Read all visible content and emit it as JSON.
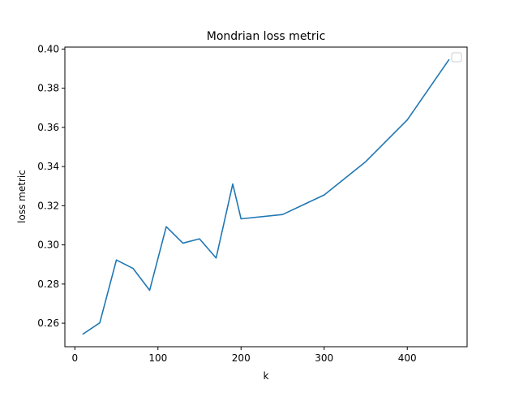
{
  "chart_data": {
    "type": "line",
    "title": "Mondrian loss metric",
    "xlabel": "k",
    "ylabel": "loss metric",
    "xlim": [
      -12,
      472
    ],
    "ylim": [
      0.248,
      0.401
    ],
    "x_ticks": [
      0,
      100,
      200,
      300,
      400
    ],
    "y_ticks": [
      0.26,
      0.28,
      0.3,
      0.32,
      0.34,
      0.36,
      0.38,
      0.4
    ],
    "y_tick_labels": [
      "0.26",
      "0.28",
      "0.30",
      "0.32",
      "0.34",
      "0.36",
      "0.38",
      "0.40"
    ],
    "grid": false,
    "legend": "top-right (empty)",
    "series": [
      {
        "color": "#1f77b4",
        "x": [
          10,
          30,
          50,
          70,
          90,
          110,
          130,
          150,
          170,
          190,
          200,
          250,
          300,
          350,
          400,
          450
        ],
        "y": [
          0.2545,
          0.2602,
          0.2923,
          0.288,
          0.2768,
          0.3093,
          0.3009,
          0.3031,
          0.2933,
          0.3311,
          0.3133,
          0.3155,
          0.3255,
          0.3425,
          0.3638,
          0.3945
        ]
      }
    ]
  }
}
